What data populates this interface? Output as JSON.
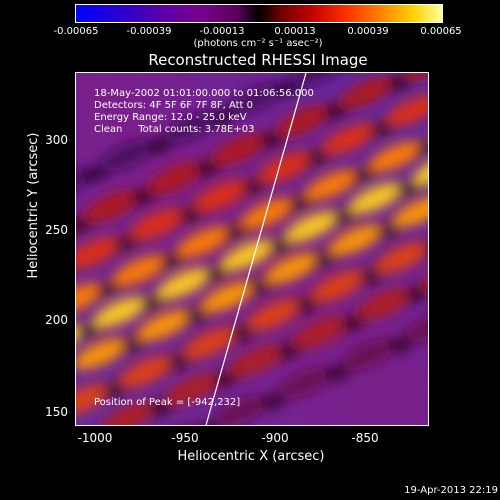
{
  "colorbar": {
    "tick_labels": [
      "-0.00065",
      "-0.00039",
      "-0.00013",
      "0.00013",
      "0.00039",
      "0.00065"
    ],
    "units": "(photons cm⁻² s⁻¹ asec⁻²)"
  },
  "title": "Reconstructed RHESSI Image",
  "info": {
    "time": "18-May-2002 01:01:00.000 to 01:06:56.000",
    "detectors": "Detectors: 4F 5F 6F 7F 8F, Att 0",
    "energy": "Energy Range: 12.0 - 25.0 keV",
    "clean": "Clean     Total counts: 3.78E+03",
    "peak": "Position of Peak = [-942,232]"
  },
  "axes": {
    "xlabel": "Heliocentric X (arcsec)",
    "ylabel": "Heliocentric Y (arcsec)",
    "x_ticks": [
      "-1000",
      "-950",
      "-900",
      "-850"
    ],
    "y_ticks": [
      "150",
      "200",
      "250",
      "300"
    ],
    "x_range": [
      -1015,
      -820
    ],
    "y_range": [
      140,
      335
    ]
  },
  "timestamp": "19-Apr-2013 22:19"
}
